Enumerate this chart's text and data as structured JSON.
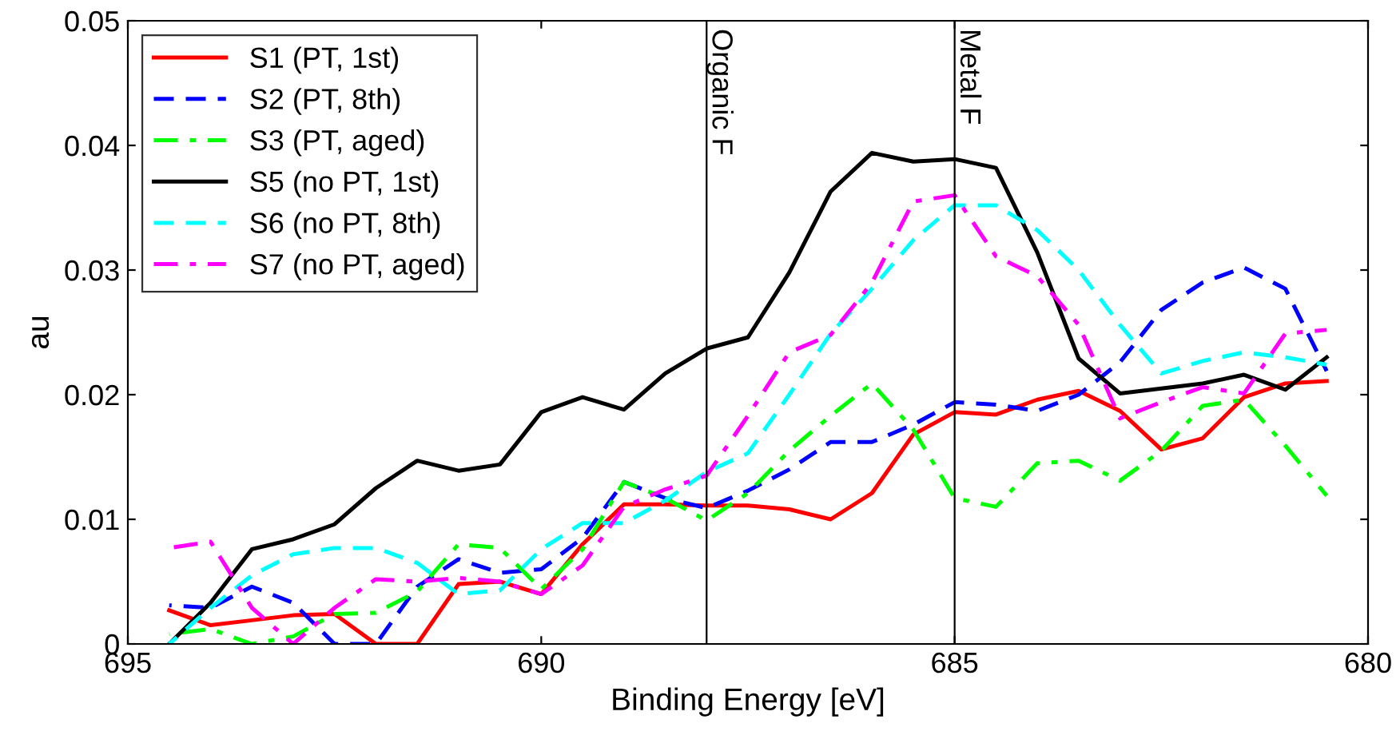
{
  "chart_data": {
    "type": "line",
    "xlabel": "Binding Energy [eV]",
    "ylabel": "au",
    "x": [
      694.5,
      694,
      693.5,
      693,
      692.5,
      692,
      691.5,
      691,
      690.5,
      690,
      689.5,
      689,
      688.5,
      688,
      687.5,
      687,
      686.5,
      686,
      685.5,
      685,
      684.5,
      684,
      683.5,
      683,
      682.5,
      682,
      681.5,
      681,
      680.5
    ],
    "series": [
      {
        "name": "S1 (PT, 1st)",
        "color": "#ff0000",
        "line_style": "solid",
        "values": [
          0.0027,
          0.0015,
          0.0019,
          0.0023,
          0.0024,
          0,
          0,
          0.0048,
          0.005,
          0.004,
          0.008,
          0.0112,
          0.0112,
          0.0111,
          0.0111,
          0.0108,
          0.01,
          0.0121,
          0.0168,
          0.0186,
          0.0184,
          0.0196,
          0.0203,
          0.0187,
          0.0156,
          0.0165,
          0.0198,
          0.0209,
          0.0211
        ]
      },
      {
        "name": "S2 (PT, 8th)",
        "color": "#0000ff",
        "line_style": "dashed",
        "values": [
          0.0031,
          0.0029,
          0.0046,
          0.0033,
          0,
          0,
          0.0046,
          0.0068,
          0.0057,
          0.006,
          0.0085,
          0.013,
          0.0117,
          0.0109,
          0.0123,
          0.014,
          0.0162,
          0.0162,
          0.0176,
          0.0194,
          0.0192,
          0.0187,
          0.02,
          0.0226,
          0.0268,
          0.029,
          0.0302,
          0.0285,
          0.0219
        ]
      },
      {
        "name": "S3 (PT, aged)",
        "color": "#00ff00",
        "line_style": "dashdot",
        "values": [
          0.0008,
          0.0012,
          0,
          0.0006,
          0.0024,
          0.0025,
          0.0042,
          0.008,
          0.0077,
          0.0044,
          0.0076,
          0.013,
          0.0117,
          0.0099,
          0.0121,
          0.0155,
          0.0183,
          0.0209,
          0.0172,
          0.0117,
          0.011,
          0.0145,
          0.0147,
          0.0131,
          0.0155,
          0.0191,
          0.0196,
          0.0159,
          0.0119
        ]
      },
      {
        "name": "S5 (no PT, 1st)",
        "color": "#000000",
        "line_style": "solid",
        "values": [
          0,
          0.0033,
          0.0076,
          0.0084,
          0.0096,
          0.0125,
          0.0147,
          0.0139,
          0.0144,
          0.0186,
          0.0198,
          0.0188,
          0.0217,
          0.0237,
          0.0246,
          0.0298,
          0.0363,
          0.0394,
          0.0387,
          0.0389,
          0.0382,
          0.0314,
          0.0229,
          0.0201,
          0.0205,
          0.0209,
          0.0216,
          0.0204,
          0.023
        ]
      },
      {
        "name": "S6 (no PT, 8th)",
        "color": "#00ffff",
        "line_style": "dashed",
        "values": [
          0,
          0.0029,
          0.0055,
          0.0072,
          0.0077,
          0.0077,
          0.0065,
          0.004,
          0.0043,
          0.0076,
          0.0097,
          0.0097,
          0.0115,
          0.0138,
          0.0153,
          0.02,
          0.0249,
          0.0285,
          0.0324,
          0.0352,
          0.0352,
          0.0332,
          0.03,
          0.0256,
          0.0217,
          0.0227,
          0.0234,
          0.023,
          0.0224
        ]
      },
      {
        "name": "S7 (no PT, aged)",
        "color": "#ff00ff",
        "line_style": "dashdot",
        "values": [
          0.0077,
          0.0082,
          0.0029,
          0,
          0.0029,
          0.0052,
          0.005,
          0.0053,
          0.005,
          0.004,
          0.0063,
          0.011,
          0.0124,
          0.0135,
          0.0183,
          0.0234,
          0.0248,
          0.029,
          0.0355,
          0.036,
          0.0311,
          0.0295,
          0.0256,
          0.0181,
          0.0194,
          0.0206,
          0.0201,
          0.0249,
          0.0252
        ]
      }
    ],
    "xlim": [
      695,
      680
    ],
    "xticks": [
      695,
      690,
      685,
      680
    ],
    "ylim": [
      0,
      0.05
    ],
    "yticks": [
      0,
      0.01,
      0.02,
      0.03,
      0.04,
      0.05
    ],
    "ref_lines": [
      {
        "axis": "x",
        "value": 688,
        "label": "Organic F",
        "color": "#000000"
      },
      {
        "axis": "x",
        "value": 685,
        "label": "Metal F",
        "color": "#000000"
      }
    ],
    "legend": "top left",
    "grid": false,
    "marker": "none"
  }
}
